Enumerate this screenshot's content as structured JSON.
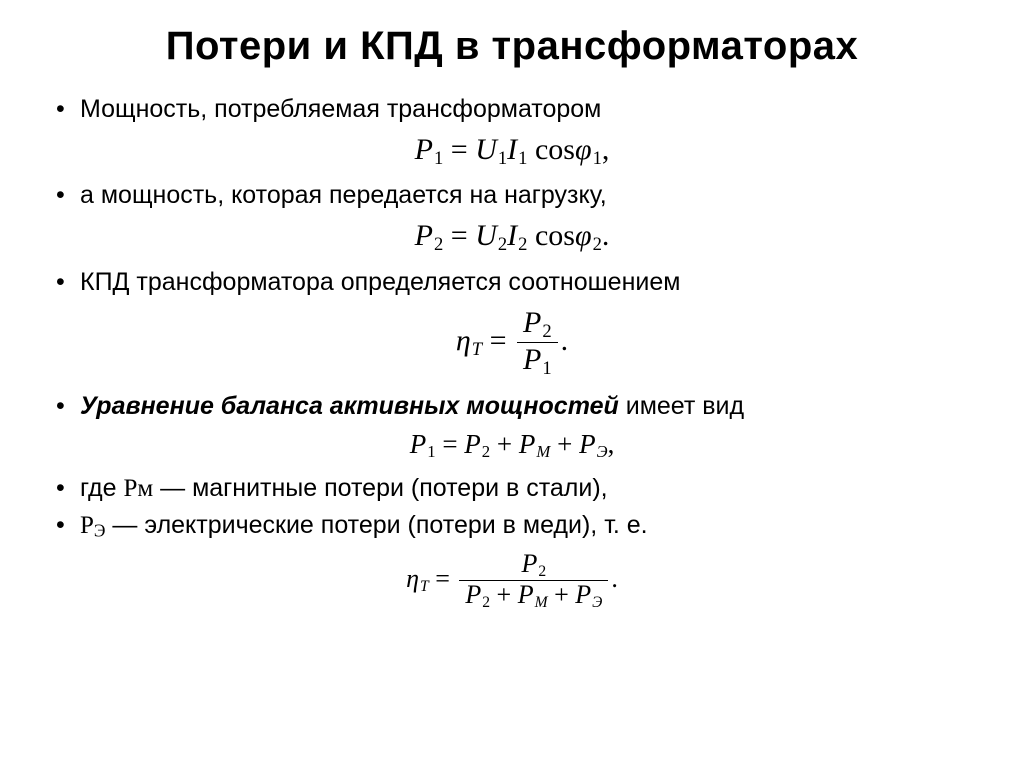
{
  "title": "Потери  и КПД в трансформаторах",
  "bullets": {
    "b1": "Мощность, потребляемая трансформатором",
    "b2": "а мощность, которая передается на нагрузку,",
    "b3": "КПД трансформатора определяется соотношением",
    "b4_emph": "Уравнение баланса активных мощностей",
    "b4_rest": " имеет вид",
    "b5_pre": "где ",
    "b5_sym": "Рм",
    "b5_rest": " — магнитные потери (потери в стали),",
    "b6_sym": "Р",
    "b6_sub": "Э",
    "b6_rest": " — электрические потери (потери в меди), т. е."
  },
  "eq1": {
    "P": "P",
    "P_sub": "1",
    "eq": " = ",
    "U": "U",
    "U_sub": "1",
    "I": "I",
    "I_sub": "1",
    "sp": " ",
    "cos": "cos",
    "phi": "φ",
    "phi_sub": "1",
    "end": ","
  },
  "eq2": {
    "P": "P",
    "P_sub": "2",
    "eq": " = ",
    "U": "U",
    "U_sub": "2",
    "I": "I",
    "I_sub": "2",
    "sp": " ",
    "cos": "cos",
    "phi": "φ",
    "phi_sub": "2",
    "end": "."
  },
  "eq3": {
    "eta": "η",
    "eta_sub": "T",
    "eq": " = ",
    "num_P": "P",
    "num_sub": "2",
    "den_P": "P",
    "den_sub": "1",
    "end": "."
  },
  "eq4": {
    "P1": "P",
    "P1_sub": "1",
    "eq": " = ",
    "P2": "P",
    "P2_sub": "2",
    "plus1": " + ",
    "PM": "P",
    "PM_sub": "М",
    "plus2": " + ",
    "PE": "P",
    "PE_sub": "Э",
    "end": ","
  },
  "eq5": {
    "eta": "η",
    "eta_sub": "T",
    "eq": " = ",
    "num_P": "P",
    "num_sub": "2",
    "den_P2": "P",
    "den_P2_sub": "2",
    "plus1": " + ",
    "den_PM": "P",
    "den_PM_sub": "М",
    "plus2": " + ",
    "den_PE": "P",
    "den_PE_sub": "Э",
    "end": "."
  }
}
